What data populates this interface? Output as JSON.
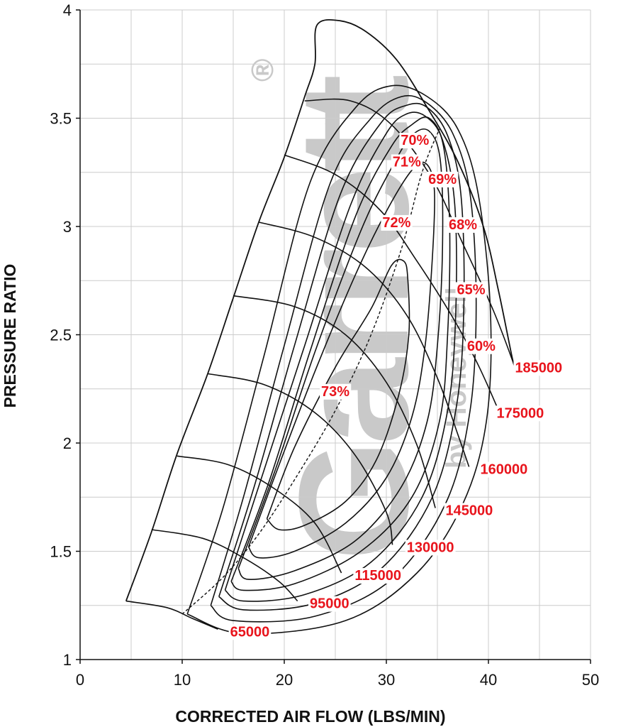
{
  "chart_data": {
    "type": "line",
    "xlabel": "CORRECTED AIR FLOW (LBS/MIN)",
    "ylabel": "PRESSURE RATIO",
    "xlim": [
      0,
      50
    ],
    "ylim": [
      1,
      4
    ],
    "xticks": [
      "0",
      "10",
      "20",
      "30",
      "40",
      "50"
    ],
    "yticks": [
      "1",
      "1.5",
      "2",
      "2.5",
      "3",
      "3.5",
      "4"
    ],
    "grid": true,
    "colors": {
      "text": "#111111",
      "efficiency_labels": "#e8141c",
      "speed_labels": "#e8141c",
      "grid": "#cccccc",
      "watermark": "#c9c9c9"
    },
    "watermark": {
      "text": "Garrett",
      "byline": "by Honeywell",
      "mark": "®"
    },
    "surge_line": [
      [
        4.5,
        1.27
      ],
      [
        7,
        1.59
      ],
      [
        9.5,
        1.95
      ],
      [
        12.5,
        2.32
      ],
      [
        15,
        2.67
      ],
      [
        17.5,
        3.02
      ],
      [
        20,
        3.32
      ],
      [
        22,
        3.6
      ],
      [
        23,
        3.75
      ],
      [
        23.2,
        3.93
      ],
      [
        25.5,
        3.95
      ],
      [
        28,
        3.9
      ],
      [
        31,
        3.77
      ],
      [
        34,
        3.55
      ],
      [
        37,
        3.3
      ],
      [
        39.5,
        3.0
      ],
      [
        41,
        2.7
      ],
      [
        42.3,
        2.4
      ],
      [
        42.6,
        2.35
      ]
    ],
    "speed_lines": [
      {
        "label": "65000",
        "label_xy": [
          14.7,
          1.13
        ],
        "points": [
          [
            4.5,
            1.27
          ],
          [
            8.5,
            1.24
          ],
          [
            11,
            1.19
          ],
          [
            13.5,
            1.14
          ]
        ]
      },
      {
        "label": "95000",
        "label_xy": [
          22.5,
          1.26
        ],
        "points": [
          [
            7,
            1.6
          ],
          [
            12,
            1.56
          ],
          [
            16,
            1.47
          ],
          [
            19.5,
            1.36
          ],
          [
            21.3,
            1.27
          ]
        ]
      },
      {
        "label": "115000",
        "label_xy": [
          26.9,
          1.39
        ],
        "points": [
          [
            9.5,
            1.94
          ],
          [
            14.5,
            1.9
          ],
          [
            19,
            1.79
          ],
          [
            23,
            1.63
          ],
          [
            25.6,
            1.4
          ]
        ]
      },
      {
        "label": "130000",
        "label_xy": [
          32,
          1.52
        ],
        "points": [
          [
            12.5,
            2.32
          ],
          [
            18,
            2.27
          ],
          [
            23,
            2.14
          ],
          [
            27,
            1.94
          ],
          [
            30,
            1.68
          ],
          [
            30.6,
            1.53
          ]
        ]
      },
      {
        "label": "145000",
        "label_xy": [
          35.8,
          1.69
        ],
        "points": [
          [
            15,
            2.68
          ],
          [
            21,
            2.63
          ],
          [
            26,
            2.5
          ],
          [
            30,
            2.28
          ],
          [
            33,
            1.99
          ],
          [
            34.8,
            1.7
          ]
        ]
      },
      {
        "label": "160000",
        "label_xy": [
          39.2,
          1.88
        ],
        "points": [
          [
            17.5,
            3.02
          ],
          [
            23,
            2.95
          ],
          [
            28,
            2.81
          ],
          [
            32,
            2.59
          ],
          [
            35,
            2.3
          ],
          [
            37,
            2.04
          ],
          [
            38.1,
            1.89
          ]
        ]
      },
      {
        "label": "175000",
        "label_xy": [
          40.8,
          2.14
        ],
        "points": [
          [
            20,
            3.33
          ],
          [
            25,
            3.24
          ],
          [
            29.5,
            3.07
          ],
          [
            33,
            2.84
          ],
          [
            36.5,
            2.58
          ],
          [
            39,
            2.36
          ],
          [
            41,
            2.15
          ]
        ]
      },
      {
        "label": "185000",
        "label_xy": [
          42.6,
          2.35
        ],
        "points": [
          [
            22,
            3.58
          ],
          [
            26.5,
            3.58
          ],
          [
            30.5,
            3.47
          ],
          [
            34.5,
            3.22
          ],
          [
            37.5,
            2.92
          ],
          [
            40.5,
            2.61
          ],
          [
            42.6,
            2.35
          ]
        ]
      }
    ],
    "efficiency_islands": [
      {
        "label": "73%",
        "label_xy": [
          25,
          2.24
        ],
        "points": [
          [
            18.3,
            1.65
          ],
          [
            21,
            1.98
          ],
          [
            25,
            2.35
          ],
          [
            28.5,
            2.62
          ],
          [
            30.5,
            2.82
          ],
          [
            31.7,
            2.84
          ],
          [
            32.1,
            2.76
          ],
          [
            32.2,
            2.5
          ],
          [
            31.2,
            2.22
          ],
          [
            29,
            1.92
          ],
          [
            26,
            1.73
          ],
          [
            22,
            1.62
          ],
          [
            19.5,
            1.6
          ],
          [
            18.3,
            1.65
          ]
        ]
      },
      {
        "label": "72%",
        "label_xy": [
          31,
          3.02
        ],
        "points": [
          [
            16.5,
            1.52
          ],
          [
            19.5,
            1.9
          ],
          [
            23,
            2.33
          ],
          [
            27,
            2.78
          ],
          [
            30,
            3.07
          ],
          [
            32.5,
            3.26
          ],
          [
            33.9,
            3.29
          ],
          [
            34.7,
            3.17
          ],
          [
            34.5,
            2.85
          ],
          [
            33.8,
            2.45
          ],
          [
            32.5,
            2.12
          ],
          [
            30,
            1.84
          ],
          [
            26,
            1.63
          ],
          [
            21,
            1.5
          ],
          [
            17.5,
            1.47
          ],
          [
            16.5,
            1.52
          ]
        ]
      },
      {
        "label": "71%",
        "label_xy": [
          32,
          3.3
        ],
        "points": [
          [
            15.5,
            1.42
          ],
          [
            19,
            1.86
          ],
          [
            23,
            2.42
          ],
          [
            27.5,
            2.98
          ],
          [
            30.5,
            3.27
          ],
          [
            32.5,
            3.42
          ],
          [
            34.2,
            3.44
          ],
          [
            35.3,
            3.3
          ],
          [
            35.5,
            2.9
          ],
          [
            35,
            2.45
          ],
          [
            34,
            2.1
          ],
          [
            31.5,
            1.8
          ],
          [
            27,
            1.55
          ],
          [
            21,
            1.41
          ],
          [
            16.5,
            1.37
          ],
          [
            15.5,
            1.42
          ]
        ]
      },
      {
        "label": "70%",
        "label_xy": [
          32.8,
          3.4
        ],
        "points": [
          [
            14.8,
            1.36
          ],
          [
            18.5,
            1.82
          ],
          [
            22.5,
            2.42
          ],
          [
            27,
            3.05
          ],
          [
            30.5,
            3.37
          ],
          [
            32.5,
            3.47
          ],
          [
            34.2,
            3.5
          ],
          [
            35.6,
            3.37
          ],
          [
            36.2,
            3.0
          ],
          [
            36,
            2.5
          ],
          [
            35.2,
            2.1
          ],
          [
            32.5,
            1.75
          ],
          [
            27.5,
            1.5
          ],
          [
            21,
            1.35
          ],
          [
            16,
            1.32
          ],
          [
            14.8,
            1.36
          ]
        ]
      },
      {
        "label": "69%",
        "label_xy": [
          35.5,
          3.22
        ],
        "points": [
          [
            14.2,
            1.32
          ],
          [
            17.5,
            1.8
          ],
          [
            22,
            2.45
          ],
          [
            26.5,
            3.1
          ],
          [
            30,
            3.43
          ],
          [
            32,
            3.52
          ],
          [
            33.8,
            3.51
          ],
          [
            35.5,
            3.4
          ],
          [
            36.7,
            3.1
          ],
          [
            36.8,
            2.6
          ],
          [
            36,
            2.15
          ],
          [
            33.5,
            1.75
          ],
          [
            28.5,
            1.45
          ],
          [
            22,
            1.3
          ],
          [
            16,
            1.27
          ],
          [
            14.2,
            1.32
          ]
        ]
      },
      {
        "label": "68%",
        "label_xy": [
          37.5,
          3.01
        ],
        "points": [
          [
            13.6,
            1.29
          ],
          [
            17,
            1.79
          ],
          [
            21,
            2.45
          ],
          [
            25.5,
            3.15
          ],
          [
            29.5,
            3.48
          ],
          [
            32,
            3.56
          ],
          [
            34,
            3.55
          ],
          [
            36,
            3.42
          ],
          [
            37.3,
            3.15
          ],
          [
            37.6,
            2.65
          ],
          [
            36.9,
            2.18
          ],
          [
            34.5,
            1.75
          ],
          [
            29.5,
            1.42
          ],
          [
            23,
            1.26
          ],
          [
            16,
            1.23
          ],
          [
            13.6,
            1.29
          ]
        ]
      },
      {
        "label": "65%",
        "label_xy": [
          38.3,
          2.71
        ],
        "points": [
          [
            12.8,
            1.25
          ],
          [
            16,
            1.75
          ],
          [
            20,
            2.45
          ],
          [
            24.5,
            3.2
          ],
          [
            28.5,
            3.5
          ],
          [
            31.5,
            3.6
          ],
          [
            34,
            3.57
          ],
          [
            36.5,
            3.43
          ],
          [
            38.2,
            3.15
          ],
          [
            38.8,
            2.65
          ],
          [
            38.2,
            2.15
          ],
          [
            35.8,
            1.72
          ],
          [
            30.5,
            1.37
          ],
          [
            23,
            1.2
          ],
          [
            15,
            1.18
          ],
          [
            12.8,
            1.25
          ]
        ]
      },
      {
        "label": "60%",
        "label_xy": [
          39.3,
          2.45
        ],
        "points": [
          [
            10.5,
            1.21
          ],
          [
            14,
            1.7
          ],
          [
            18,
            2.4
          ],
          [
            22.5,
            3.2
          ],
          [
            27,
            3.55
          ],
          [
            30.5,
            3.65
          ],
          [
            34,
            3.6
          ],
          [
            37,
            3.45
          ],
          [
            39,
            3.15
          ],
          [
            40.2,
            2.6
          ],
          [
            39.8,
            2.1
          ],
          [
            37.5,
            1.72
          ],
          [
            33,
            1.4
          ],
          [
            26,
            1.18
          ],
          [
            16,
            1.12
          ],
          [
            10.5,
            1.21
          ]
        ]
      }
    ],
    "peak_efficiency_line": [
      [
        10,
        1.21
      ],
      [
        14,
        1.38
      ],
      [
        17.5,
        1.58
      ],
      [
        21,
        1.83
      ],
      [
        25,
        2.15
      ],
      [
        28.5,
        2.5
      ],
      [
        31.5,
        2.9
      ],
      [
        33.5,
        3.25
      ],
      [
        35.2,
        3.45
      ]
    ]
  }
}
